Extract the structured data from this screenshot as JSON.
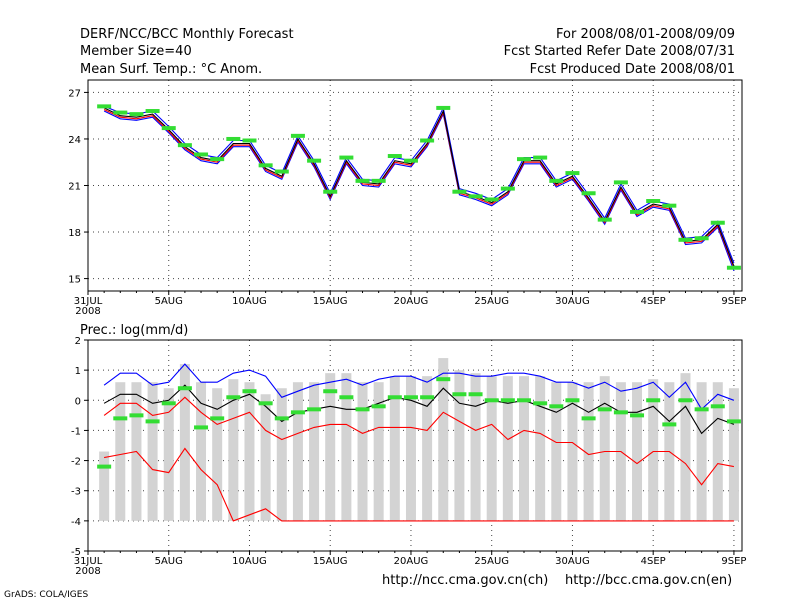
{
  "header": {
    "title": "DERF/NCC/BCC Monthly Forecast",
    "member": "Member Size=40",
    "variable": "Mean Surf. Temp.: °C Anom.",
    "period": "For 2008/08/01-2008/09/09",
    "start_date": "Fcst Started Refer Date 2008/07/31",
    "produced_date": "Fcst Produced Date 2008/08/01"
  },
  "footer": {
    "credit": "GrADS: COLA/IGES",
    "url_ncc": "http://ncc.cma.gov.cn(ch)",
    "url_bcc": "http://bcc.cma.gov.cn(en)"
  },
  "colors": {
    "ensemble_mean": "#000000",
    "upper_bound": "#0000ff",
    "lower_bound": "#ff0000",
    "climatology": "#33dd33",
    "spread_bar": "#d3d3d3",
    "grid": "#444444"
  },
  "chart_data": [
    {
      "type": "line",
      "title": "Mean Surf. Temp.: °C Anom.",
      "xlabel": "",
      "ylabel": "",
      "x_tick_labels": [
        "31JUL",
        "5AUG",
        "10AUG",
        "15AUG",
        "20AUG",
        "25AUG",
        "30AUG",
        "4SEP",
        "9SEP"
      ],
      "x_tick_days": [
        0,
        5,
        10,
        15,
        20,
        25,
        30,
        35,
        40
      ],
      "year_label": "2008",
      "y_ticks": [
        15,
        18,
        21,
        24,
        27
      ],
      "ylim": [
        14.2,
        27.8
      ],
      "xlim": [
        0,
        40.5
      ],
      "grid": true,
      "x": [
        1,
        2,
        3,
        4,
        5,
        6,
        7,
        8,
        9,
        10,
        11,
        12,
        13,
        14,
        15,
        16,
        17,
        18,
        19,
        20,
        21,
        22,
        23,
        24,
        25,
        26,
        27,
        28,
        29,
        30,
        31,
        32,
        33,
        34,
        35,
        36,
        37,
        38,
        39,
        40
      ],
      "series": [
        {
          "name": "ensemble mean",
          "color_key": "ensemble_mean",
          "values": [
            26.0,
            25.5,
            25.4,
            25.6,
            24.6,
            23.5,
            22.8,
            22.6,
            23.7,
            23.7,
            22.1,
            21.6,
            24.0,
            22.4,
            20.3,
            22.6,
            21.2,
            21.1,
            22.6,
            22.4,
            23.7,
            25.8,
            20.6,
            20.3,
            19.9,
            20.6,
            22.6,
            22.6,
            21.1,
            21.6,
            20.2,
            18.7,
            20.9,
            19.2,
            19.8,
            19.6,
            17.4,
            17.5,
            18.5,
            15.8
          ]
        },
        {
          "name": "upper",
          "color_key": "upper_bound",
          "values": [
            26.1,
            25.7,
            25.6,
            25.8,
            24.8,
            23.7,
            23.0,
            22.8,
            23.9,
            23.9,
            22.3,
            21.8,
            24.2,
            22.6,
            20.5,
            22.8,
            21.4,
            21.3,
            22.8,
            22.6,
            23.9,
            26.0,
            20.8,
            20.5,
            20.1,
            20.8,
            22.8,
            22.8,
            21.3,
            21.8,
            20.4,
            18.9,
            21.1,
            19.4,
            20.0,
            19.8,
            17.6,
            17.7,
            18.7,
            16.0
          ]
        },
        {
          "name": "lower",
          "color_key": "lower_bound",
          "values": [
            25.9,
            25.4,
            25.3,
            25.5,
            24.5,
            23.4,
            22.7,
            22.5,
            23.6,
            23.6,
            22.0,
            21.5,
            23.9,
            22.3,
            20.2,
            22.5,
            21.1,
            21.0,
            22.5,
            22.3,
            23.6,
            25.7,
            20.5,
            20.2,
            19.8,
            20.5,
            22.5,
            22.5,
            21.0,
            21.5,
            20.1,
            18.6,
            20.8,
            19.1,
            19.7,
            19.5,
            17.3,
            17.4,
            18.4,
            15.7
          ]
        },
        {
          "name": "lower 2",
          "color_key": "upper_bound",
          "values": [
            25.8,
            25.3,
            25.2,
            25.4,
            24.4,
            23.3,
            22.6,
            22.4,
            23.5,
            23.5,
            21.9,
            21.4,
            23.8,
            22.2,
            20.1,
            22.4,
            21.0,
            20.9,
            22.4,
            22.2,
            23.5,
            25.6,
            20.4,
            20.1,
            19.7,
            20.4,
            22.4,
            22.4,
            20.9,
            21.4,
            20.0,
            18.5,
            20.7,
            19.0,
            19.6,
            19.4,
            17.2,
            17.3,
            18.3,
            15.5
          ]
        }
      ],
      "markers": {
        "name": "climatology",
        "color_key": "climatology",
        "values": [
          26.1,
          25.7,
          25.6,
          25.8,
          24.7,
          23.6,
          23.0,
          22.7,
          24.0,
          23.9,
          22.3,
          21.9,
          24.2,
          22.6,
          20.6,
          22.8,
          21.3,
          21.3,
          22.9,
          22.6,
          23.9,
          26.0,
          20.6,
          20.3,
          20.1,
          20.8,
          22.7,
          22.8,
          21.3,
          21.8,
          20.5,
          18.8,
          21.2,
          19.3,
          20.0,
          19.7,
          17.5,
          17.6,
          18.6,
          15.7
        ]
      }
    },
    {
      "type": "line",
      "title": "Prec.: log(mm/d)",
      "xlabel": "",
      "ylabel": "",
      "x_tick_labels": [
        "31JUL",
        "5AUG",
        "10AUG",
        "15AUG",
        "20AUG",
        "25AUG",
        "30AUG",
        "4SEP",
        "9SEP"
      ],
      "x_tick_days": [
        0,
        5,
        10,
        15,
        20,
        25,
        30,
        35,
        40
      ],
      "year_label": "2008",
      "y_ticks": [
        -5,
        -4,
        -3,
        -2,
        -1,
        0,
        1,
        2
      ],
      "ylim": [
        -5,
        2
      ],
      "xlim": [
        0,
        40.5
      ],
      "grid": true,
      "x": [
        1,
        2,
        3,
        4,
        5,
        6,
        7,
        8,
        9,
        10,
        11,
        12,
        13,
        14,
        15,
        16,
        17,
        18,
        19,
        20,
        21,
        22,
        23,
        24,
        25,
        26,
        27,
        28,
        29,
        30,
        31,
        32,
        33,
        34,
        35,
        36,
        37,
        38,
        39,
        40
      ],
      "bars": {
        "name": "ensemble spread",
        "color_key": "spread_bar",
        "low": [
          -4,
          -4,
          -4,
          -4,
          -4,
          -4,
          -4,
          -4,
          -4,
          -4,
          -4,
          -4,
          -4,
          -4,
          -4,
          -4,
          -4,
          -4,
          -4,
          -4,
          -4,
          -4,
          -4,
          -4,
          -4,
          -4,
          -4,
          -4,
          -4,
          -4,
          -4,
          -4,
          -4,
          -4,
          -4,
          -4,
          -4,
          -4,
          -4,
          -4
        ],
        "high": [
          -1.7,
          0.6,
          0.6,
          0.6,
          0.4,
          1.2,
          0.6,
          0.4,
          0.7,
          0.6,
          0.2,
          0.4,
          0.6,
          0.6,
          0.9,
          0.9,
          0.6,
          0.6,
          0.8,
          0.8,
          0.8,
          1.4,
          1.0,
          0.9,
          0.8,
          0.8,
          0.8,
          0.8,
          0.6,
          0.6,
          0.6,
          0.8,
          0.6,
          0.6,
          0.7,
          0.6,
          0.9,
          0.6,
          0.6,
          0.4
        ]
      },
      "series": [
        {
          "name": "upper",
          "color_key": "upper_bound",
          "values": [
            0.5,
            0.9,
            0.9,
            0.5,
            0.6,
            1.2,
            0.6,
            0.6,
            0.9,
            1.0,
            0.8,
            0.1,
            0.3,
            0.5,
            0.6,
            0.7,
            0.5,
            0.7,
            0.8,
            0.8,
            0.6,
            0.9,
            0.9,
            0.8,
            0.8,
            0.9,
            0.9,
            0.8,
            0.6,
            0.6,
            0.4,
            0.6,
            0.3,
            0.4,
            0.6,
            0.1,
            0.6,
            -0.3,
            0.2,
            0.0
          ]
        },
        {
          "name": "ensemble mean",
          "color_key": "ensemble_mean",
          "values": [
            -0.1,
            0.2,
            0.2,
            -0.1,
            0.0,
            0.5,
            -0.1,
            -0.3,
            0.0,
            0.2,
            -0.2,
            -0.7,
            -0.4,
            -0.3,
            -0.2,
            -0.3,
            -0.3,
            -0.1,
            0.1,
            0.0,
            -0.2,
            0.4,
            -0.1,
            -0.2,
            0.0,
            -0.1,
            0.0,
            -0.2,
            -0.4,
            -0.1,
            -0.4,
            -0.1,
            -0.4,
            -0.4,
            -0.2,
            -0.7,
            -0.2,
            -1.1,
            -0.6,
            -0.8
          ]
        },
        {
          "name": "lower",
          "color_key": "lower_bound",
          "values": [
            -1.9,
            -1.8,
            -1.7,
            -2.3,
            -2.4,
            -1.6,
            -2.3,
            -2.8,
            -4.0,
            -3.8,
            -3.6,
            -4.0,
            -4.0,
            -4.0,
            -4.0,
            -4.0,
            -4.0,
            -4.0,
            -4.0,
            -4.0,
            -4.0,
            -4.0,
            -4.0,
            -4.0,
            -4.0,
            -4.0,
            -4.0,
            -4.0,
            -4.0,
            -4.0,
            -4.0,
            -4.0,
            -4.0,
            -4.0,
            -4.0,
            -4.0,
            -4.0,
            -4.0,
            -4.0,
            -4.0
          ]
        },
        {
          "name": "lower 2",
          "color_key": "lower_bound",
          "values": [
            -0.5,
            -0.1,
            -0.1,
            -0.5,
            -0.4,
            0.1,
            -0.4,
            -0.8,
            -0.6,
            -0.4,
            -1.0,
            -1.3,
            -1.1,
            -0.9,
            -0.8,
            -0.8,
            -1.1,
            -0.9,
            -0.9,
            -0.9,
            -1.0,
            -0.4,
            -0.7,
            -1.0,
            -0.8,
            -1.3,
            -1.0,
            -1.1,
            -1.4,
            -1.4,
            -1.8,
            -1.7,
            -1.7,
            -2.1,
            -1.7,
            -1.7,
            -2.1,
            -2.8,
            -2.1,
            -2.2
          ]
        }
      ],
      "markers": {
        "name": "climatology",
        "color_key": "climatology",
        "values": [
          -2.2,
          -0.6,
          -0.5,
          -0.7,
          -0.1,
          0.4,
          -0.9,
          -0.6,
          0.1,
          0.3,
          -0.1,
          -0.6,
          -0.4,
          -0.3,
          0.3,
          0.1,
          -0.3,
          -0.2,
          0.1,
          0.1,
          0.1,
          0.7,
          0.2,
          0.2,
          0.0,
          0.0,
          0.0,
          -0.1,
          -0.2,
          0.0,
          -0.6,
          -0.3,
          -0.4,
          -0.5,
          0.0,
          -0.8,
          0.0,
          -0.3,
          -0.2,
          -0.7
        ]
      }
    }
  ]
}
